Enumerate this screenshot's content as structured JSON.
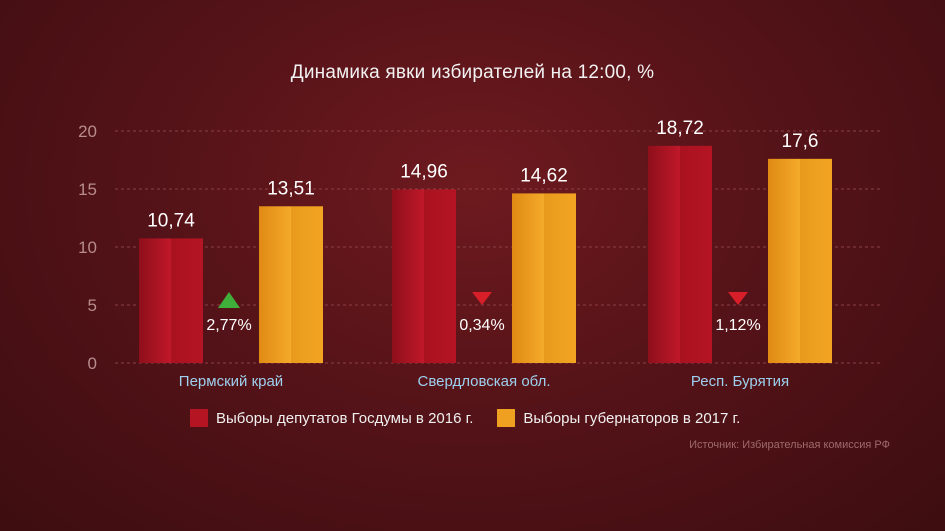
{
  "colors": {
    "series_2016": "#b51423",
    "series_2017": "#f0a020",
    "grid": "#8a4046",
    "tick": "#b98c8c",
    "category": "#9ed0ef",
    "increase": "#3fae3a",
    "decrease": "#d81e28"
  },
  "chart_data": {
    "type": "bar",
    "title": "Динамика явки избирателей на 12:00, %",
    "categories": [
      "Пермский край",
      "Свердловская обл.",
      "Респ. Бурятия"
    ],
    "series": [
      {
        "name": "Выборы депутатов Госдумы в 2016 г.",
        "values": [
          10.74,
          14.96,
          18.72
        ],
        "labels": [
          "10,74",
          "14,96",
          "18,72"
        ]
      },
      {
        "name": "Выборы губернаторов в 2017 г.",
        "values": [
          13.51,
          14.62,
          17.6
        ],
        "labels": [
          "13,51",
          "14,62",
          "17,6"
        ]
      }
    ],
    "changes": [
      {
        "label": "2,77%",
        "direction": "up"
      },
      {
        "label": "0,34%",
        "direction": "down"
      },
      {
        "label": "1,12%",
        "direction": "down"
      }
    ],
    "y_ticks": [
      "0",
      "5",
      "10",
      "15",
      "20"
    ],
    "ylim": [
      0,
      20
    ],
    "grid": true,
    "legend_position": "bottom"
  },
  "source": "Источник: Избирательная комиссия РФ"
}
